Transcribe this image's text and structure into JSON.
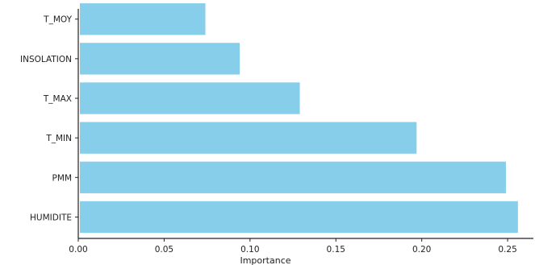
{
  "chart_data": {
    "type": "bar",
    "orientation": "horizontal",
    "categories": [
      "HUMIDITE",
      "PMM",
      "T_MIN",
      "T_MAX",
      "INSOLATION",
      "T_MOY"
    ],
    "values": [
      0.256,
      0.249,
      0.197,
      0.129,
      0.094,
      0.074
    ],
    "xlabel": "Importance",
    "ylabel": "",
    "title": "",
    "xlim": [
      0,
      0.265
    ],
    "xticks": [
      0.0,
      0.05,
      0.1,
      0.15,
      0.2,
      0.25
    ],
    "xtick_labels": [
      "0.00",
      "0.05",
      "0.10",
      "0.15",
      "0.20",
      "0.25"
    ],
    "grid": false,
    "legend": "none",
    "bar_color": "#87ceeb"
  }
}
